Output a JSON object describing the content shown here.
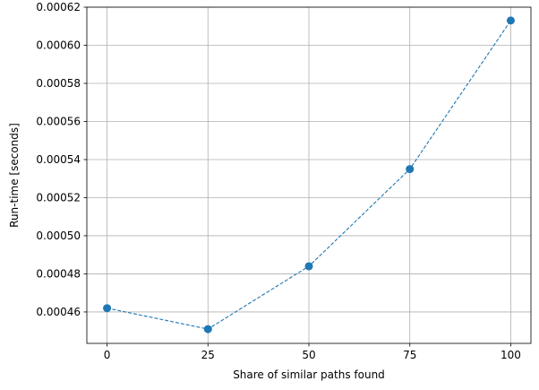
{
  "chart_data": {
    "type": "line",
    "title": "",
    "xlabel": "Share of similar paths found",
    "ylabel": "Run-time [seconds]",
    "x": [
      0,
      25,
      50,
      75,
      100
    ],
    "series": [
      {
        "values": [
          0.000462,
          0.000451,
          0.000484,
          0.000535,
          0.000613
        ],
        "color": "#1f77b4",
        "line_style": "dashed",
        "marker": "circle"
      }
    ],
    "xlim": [
      -5,
      105
    ],
    "ylim": [
      0.0004435,
      0.00062
    ],
    "x_ticks": [
      0,
      25,
      50,
      75,
      100
    ],
    "x_tick_labels": [
      "0",
      "25",
      "50",
      "75",
      "100"
    ],
    "y_ticks": [
      0.00046,
      0.00048,
      0.0005,
      0.00052,
      0.00054,
      0.00056,
      0.00058,
      0.0006,
      0.00062
    ],
    "y_tick_labels": [
      "0.00046",
      "0.00048",
      "0.00050",
      "0.00052",
      "0.00054",
      "0.00056",
      "0.00058",
      "0.00060",
      "0.00062"
    ],
    "grid": true,
    "legend": "none",
    "colors": {
      "grid": "#b0b0b0",
      "axes": "#000000"
    }
  }
}
